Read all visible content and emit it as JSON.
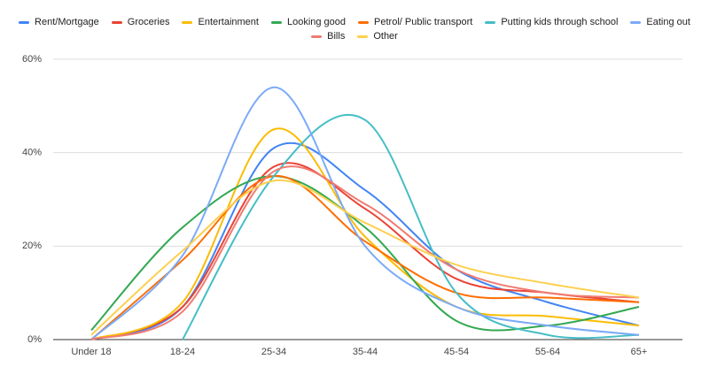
{
  "chart_data": {
    "type": "line",
    "categories": [
      "Under 18",
      "18-24",
      "25-34",
      "35-44",
      "45-54",
      "55-64",
      "65+"
    ],
    "series": [
      {
        "name": "Rent/Mortgage",
        "color": "#4285f4",
        "values": [
          0,
          7,
          41,
          32,
          15,
          8,
          3
        ]
      },
      {
        "name": "Groceries",
        "color": "#ea4335",
        "values": [
          0,
          7,
          37,
          28,
          13,
          10,
          8
        ]
      },
      {
        "name": "Entertainment",
        "color": "#fbbc04",
        "values": [
          0,
          8,
          45,
          22,
          7,
          5,
          3
        ]
      },
      {
        "name": "Looking good",
        "color": "#34a853",
        "values": [
          2,
          24,
          35,
          24,
          4,
          3,
          7
        ]
      },
      {
        "name": "Petrol/ Public transport",
        "color": "#ff6d01",
        "values": [
          0,
          17,
          35,
          21,
          10,
          9,
          8
        ]
      },
      {
        "name": "Putting kids through school",
        "color": "#46bdc6",
        "values": [
          null,
          0,
          35,
          47,
          10,
          1,
          1
        ]
      },
      {
        "name": "Eating out",
        "color": "#7baaf7",
        "values": [
          0,
          18,
          54,
          20,
          7,
          3,
          1
        ]
      },
      {
        "name": "Bills",
        "color": "#f07b72",
        "values": [
          0,
          6,
          36,
          29,
          15,
          10,
          9
        ]
      },
      {
        "name": "Other",
        "color": "#fcd04f",
        "values": [
          1,
          19,
          34,
          25,
          16,
          12,
          9
        ]
      }
    ],
    "ylim": [
      0,
      60
    ],
    "yticks": [
      {
        "value": 0,
        "label": "0%"
      },
      {
        "value": 20,
        "label": "20%"
      },
      {
        "value": 40,
        "label": "40%"
      },
      {
        "value": 60,
        "label": "60%"
      }
    ],
    "grid": true
  }
}
